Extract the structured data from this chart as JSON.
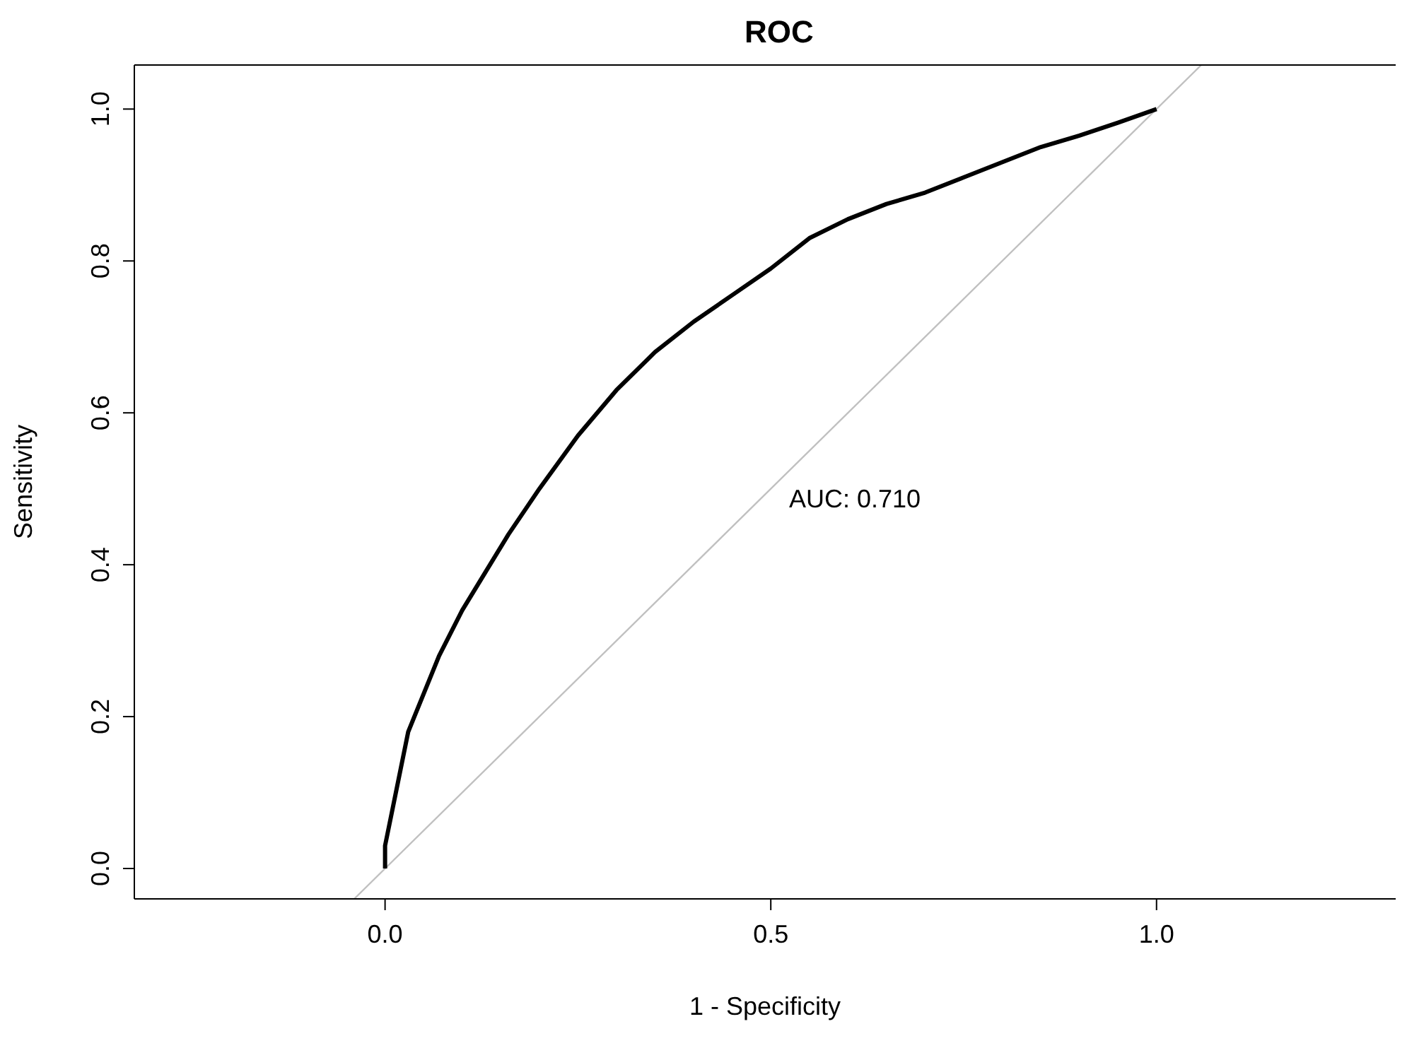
{
  "chart_data": {
    "type": "line",
    "title": "ROC",
    "xlabel": "1 - Specificity",
    "ylabel": "Sensitivity",
    "xlim": [
      -0.325,
      1.31
    ],
    "ylim": [
      -0.04,
      1.058
    ],
    "xticks": [
      {
        "value": 0,
        "label": "0.0"
      },
      0.5,
      {
        "value": 1,
        "label": "1.0"
      }
    ],
    "yticks": [
      {
        "value": 0,
        "label": "0.0"
      },
      {
        "value": 0.2,
        "label": "0.2"
      },
      {
        "value": 0.4,
        "label": "0.4"
      },
      {
        "value": 0.6,
        "label": "0.6"
      },
      {
        "value": 0.8,
        "label": "0.8"
      },
      {
        "value": 1,
        "label": "1.0"
      }
    ],
    "series": [
      {
        "type": "line",
        "color": "#c0c0c0",
        "x": [
          -0.04,
          1.058
        ],
        "values": [
          -0.04,
          1.058
        ]
      },
      {
        "type": "line",
        "color": "#000000",
        "x": [
          0,
          0,
          0.01,
          0.02,
          0.03,
          0.05,
          0.07,
          0.1,
          0.13,
          0.16,
          0.2,
          0.25,
          0.3,
          0.35,
          0.4,
          0.45,
          0.5,
          0.55,
          0.6,
          0.65,
          0.7,
          0.75,
          0.8,
          0.85,
          0.9,
          0.95,
          1
        ],
        "values": [
          0,
          0.03,
          0.08,
          0.13,
          0.18,
          0.23,
          0.28,
          0.34,
          0.39,
          0.44,
          0.5,
          0.57,
          0.63,
          0.68,
          0.72,
          0.755,
          0.79,
          0.83,
          0.855,
          0.875,
          0.89,
          0.91,
          0.93,
          0.95,
          0.965,
          0.982,
          1
        ]
      }
    ],
    "annotations": [
      "AUC: 0.710"
    ]
  }
}
